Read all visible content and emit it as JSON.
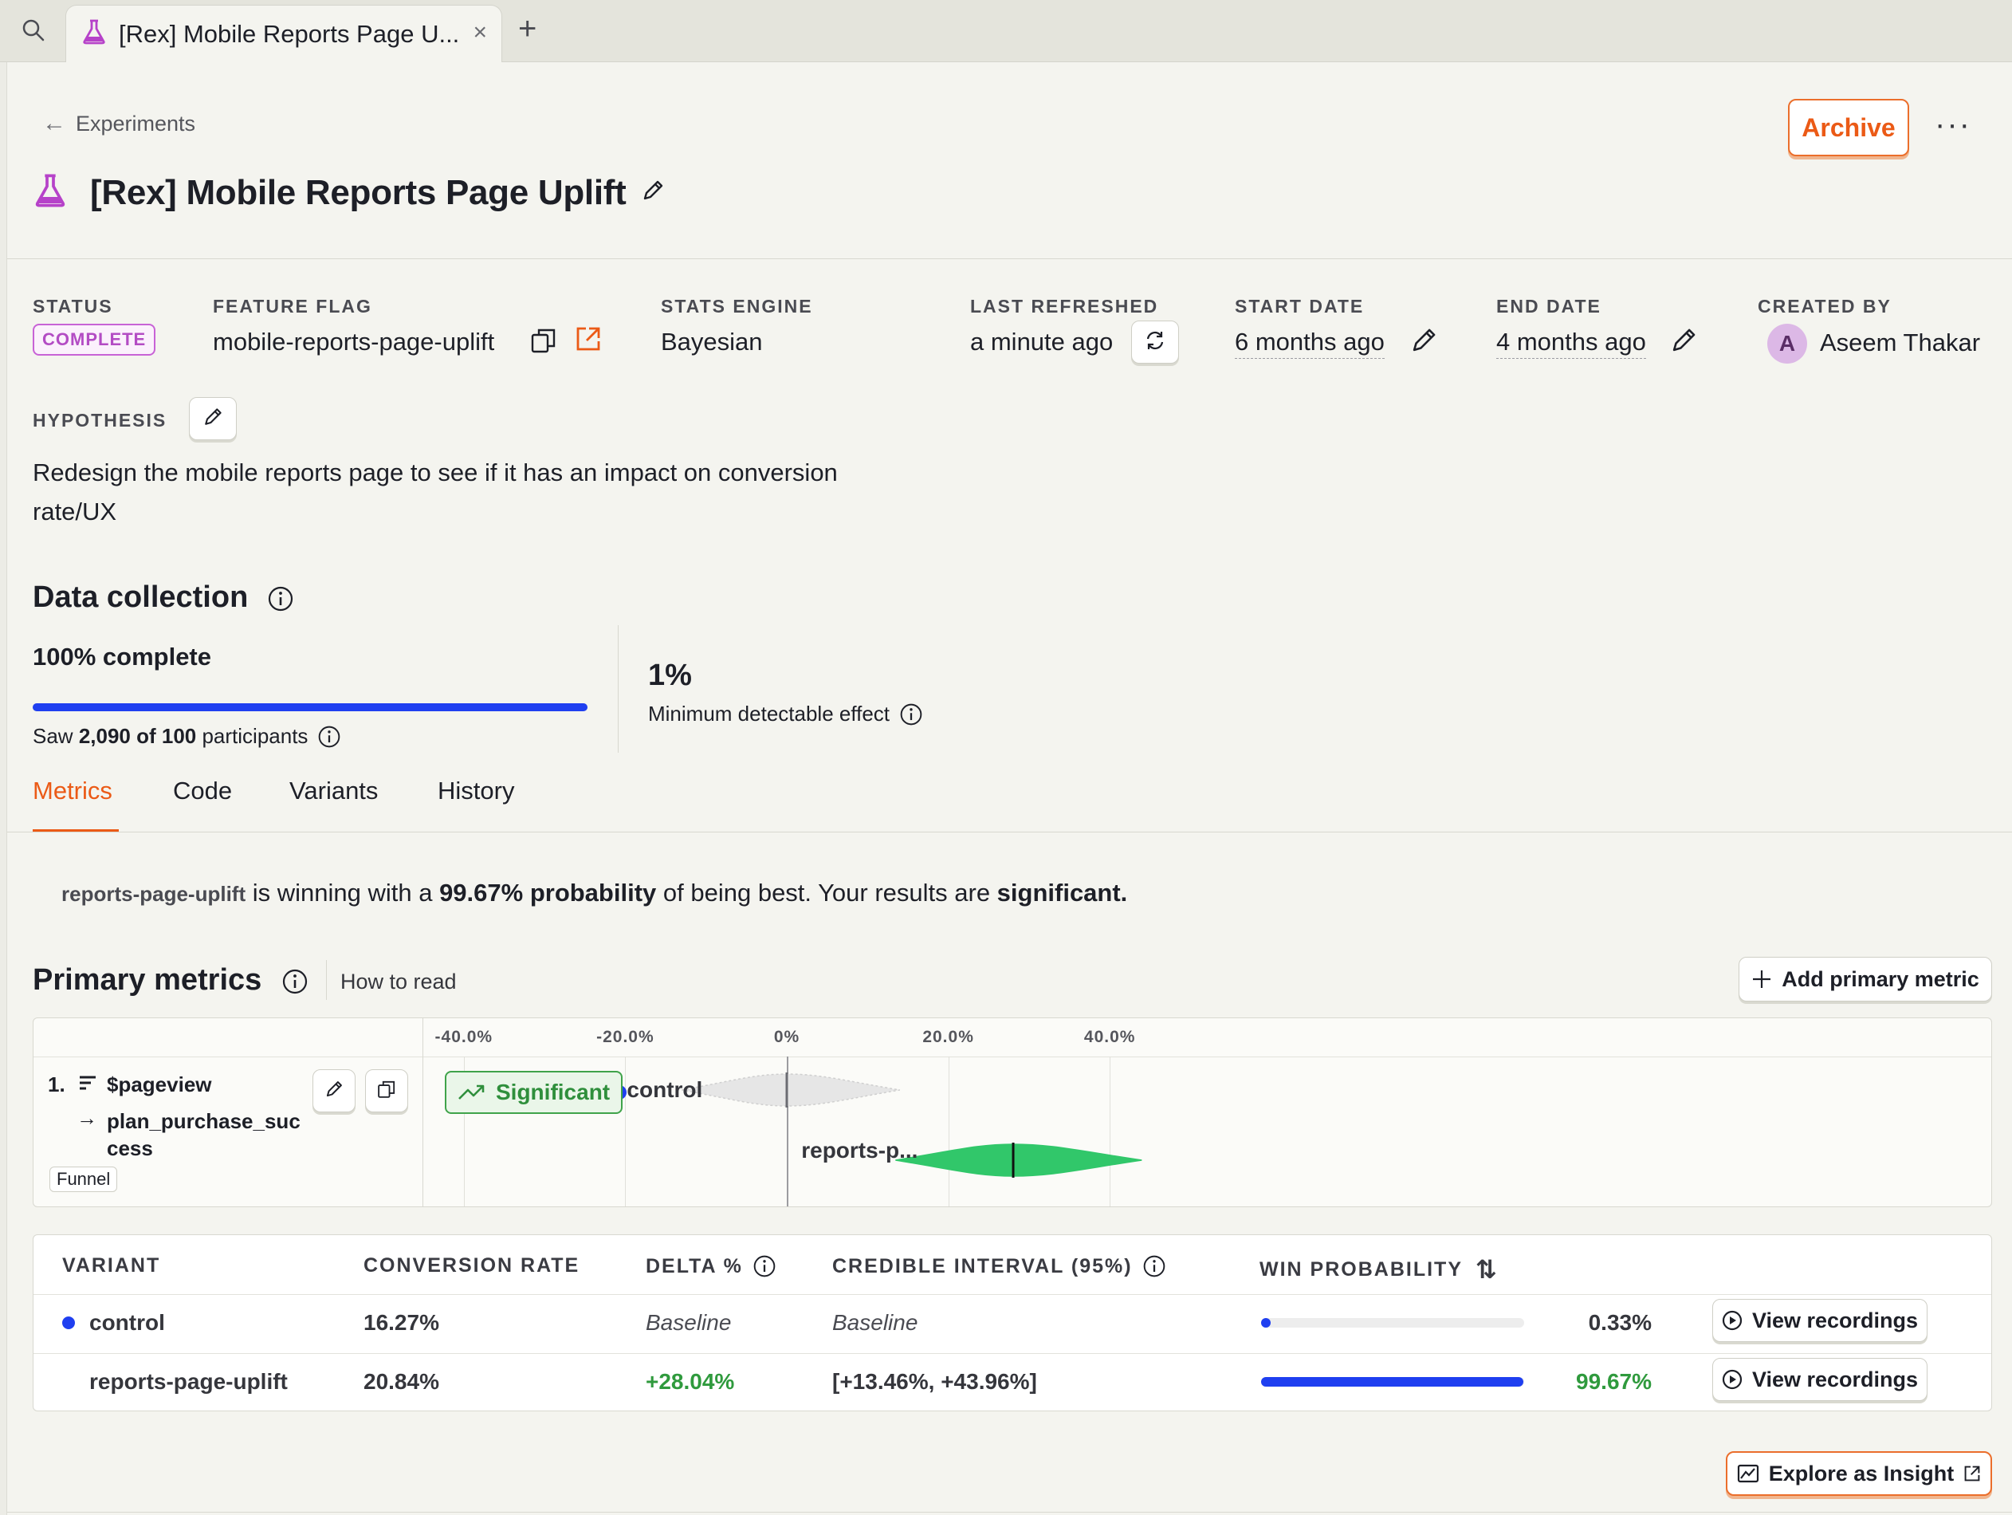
{
  "browser": {
    "tab_title": "[Rex] Mobile Reports Page U...",
    "close_glyph": "×",
    "new_tab_glyph": "+"
  },
  "header": {
    "breadcrumb": "Experiments",
    "breadcrumb_arrow": "←",
    "title": "[Rex] Mobile Reports Page Uplift",
    "archive_label": "Archive",
    "more_glyph": "···"
  },
  "meta": {
    "status": {
      "label": "STATUS",
      "value": "COMPLETE"
    },
    "feature_flag": {
      "label": "FEATURE FLAG",
      "value": "mobile-reports-page-uplift"
    },
    "stats_engine": {
      "label": "STATS ENGINE",
      "value": "Bayesian"
    },
    "last_refreshed": {
      "label": "LAST REFRESHED",
      "value": "a minute ago"
    },
    "start_date": {
      "label": "START DATE",
      "value": "6 months ago"
    },
    "end_date": {
      "label": "END DATE",
      "value": "4 months ago"
    },
    "created_by": {
      "label": "CREATED BY",
      "value": "Aseem Thakar",
      "initial": "A"
    }
  },
  "hypothesis": {
    "label": "HYPOTHESIS",
    "text": "Redesign the mobile reports page to see if it has an impact on conversion rate/UX"
  },
  "data_collection": {
    "title": "Data collection",
    "percent_label": "100% complete",
    "progress_fraction": 1.0,
    "saw_prefix": "Saw ",
    "saw_count": "2,090 of 100",
    "saw_suffix": " participants",
    "mde_value": "1%",
    "mde_label": "Minimum detectable effect"
  },
  "tabs": [
    {
      "label": "Metrics",
      "active": true
    },
    {
      "label": "Code",
      "active": false
    },
    {
      "label": "Variants",
      "active": false
    },
    {
      "label": "History",
      "active": false
    }
  ],
  "summary": {
    "variant": "reports-page-uplift",
    "part1": " is winning with a ",
    "probability": "99.67% probability",
    "part2": " of being best. Your results are ",
    "significant": "significant."
  },
  "primary_metrics": {
    "title": "Primary metrics",
    "how_to_read": "How to read",
    "add_label": "Add primary metric",
    "axis_ticks": [
      "-40.0%",
      "-20.0%",
      "0%",
      "20.0%",
      "40.0%"
    ],
    "metric": {
      "index": "1.",
      "event": "$pageview",
      "arrow": "→",
      "step2": "plan_purchase_success",
      "type": "Funnel",
      "badge": "Significant"
    },
    "chart_labels": {
      "control": "control",
      "test": "reports-p..."
    },
    "colors": {
      "control_dot": "#1f3ff0",
      "test_fill": "#31c76a"
    }
  },
  "chart_data": {
    "type": "scatter",
    "x_ticks": [
      "-40.0%",
      "-20.0%",
      "0%",
      "20.0%",
      "40.0%"
    ],
    "xlim": [
      -40,
      40
    ],
    "series": [
      {
        "name": "control",
        "center": 0,
        "interval": [
          -13,
          14
        ]
      },
      {
        "name": "reports-page-uplift",
        "center": 28.04,
        "interval": [
          13.46,
          43.96
        ]
      }
    ]
  },
  "results_table": {
    "headers": {
      "variant": "VARIANT",
      "conversion": "CONVERSION RATE",
      "delta": "DELTA %",
      "interval": "CREDIBLE INTERVAL (95%)",
      "win": "WIN PROBABILITY",
      "sort_glyph": "⇅"
    },
    "rows": [
      {
        "variant": "control",
        "conversion": "16.27%",
        "delta": "Baseline",
        "interval": "Baseline",
        "win": "0.33%",
        "win_fraction": 0.0033,
        "action": "View recordings"
      },
      {
        "variant": "reports-page-uplift",
        "conversion": "20.84%",
        "delta": "+28.04%",
        "interval": "[+13.46%, +43.96%]",
        "win": "99.67%",
        "win_fraction": 0.9967,
        "action": "View recordings"
      }
    ]
  },
  "explore_label": "Explore as Insight"
}
